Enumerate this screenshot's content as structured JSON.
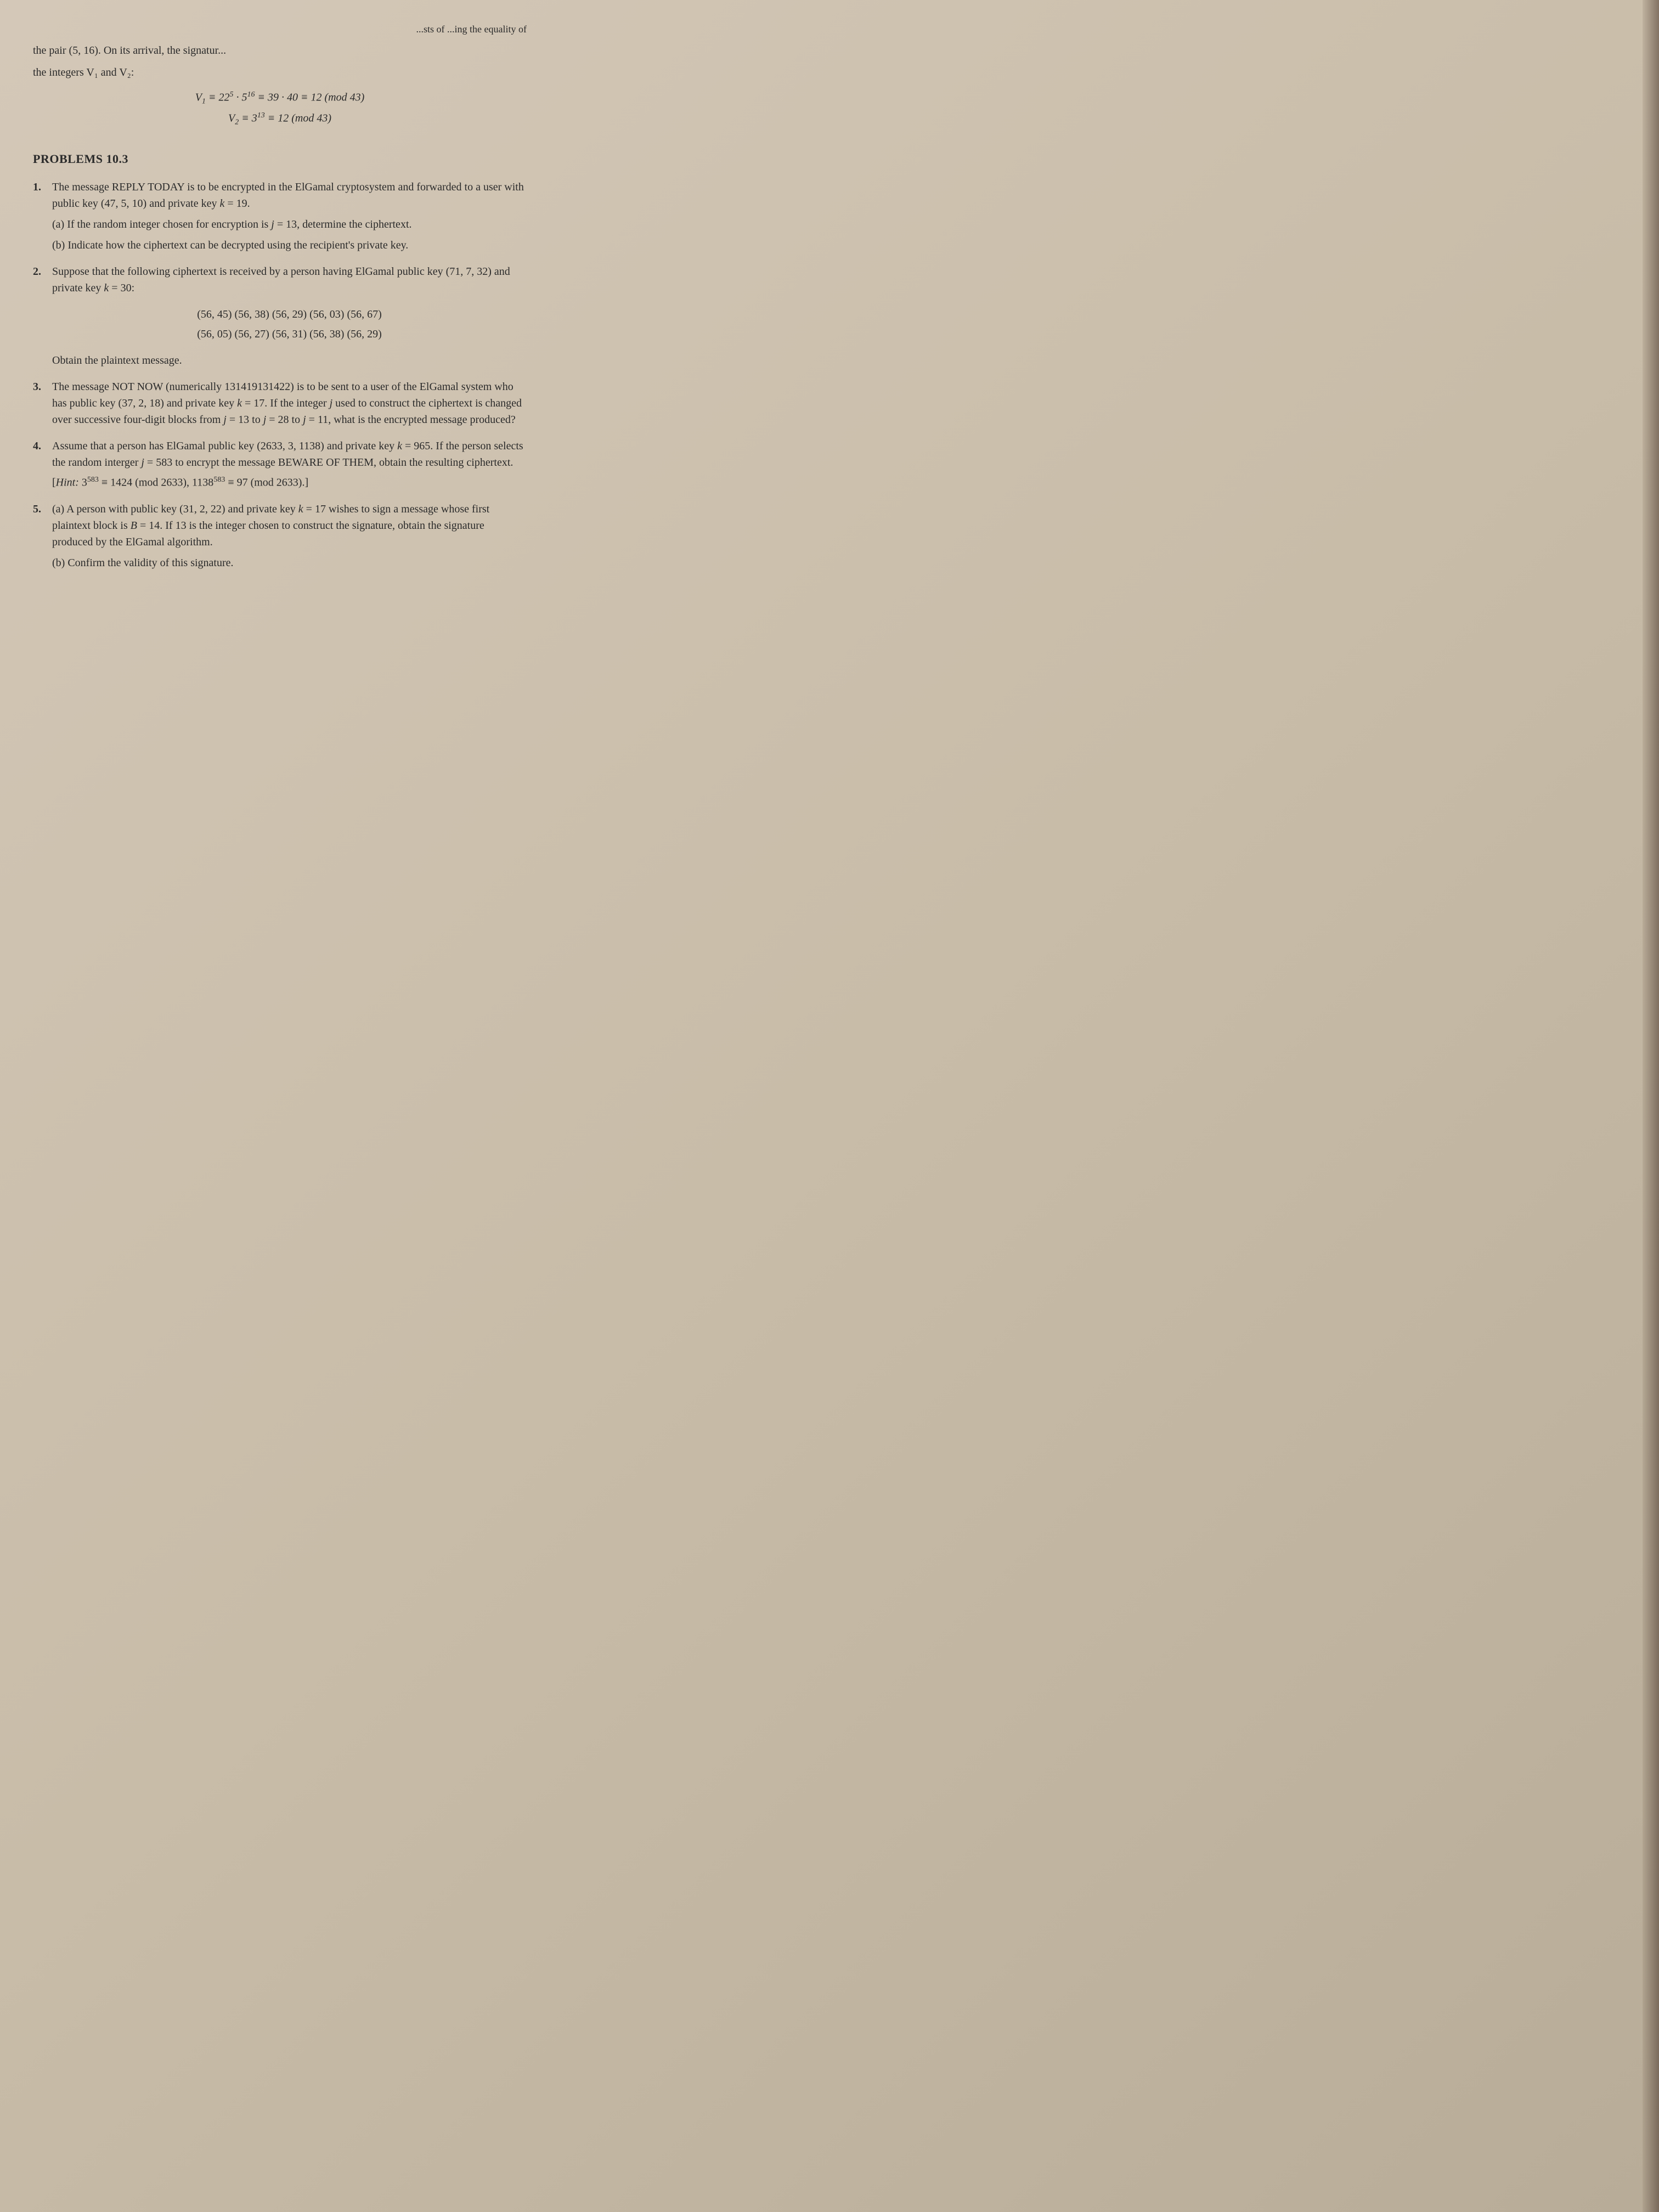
{
  "topRightFragment": "...sts of ...ing the equality of",
  "topFragment1": "the pair (5, 16). On its arrival, the signatur...",
  "topFragment2": "the integers V₁ and V₂:",
  "eq1": "V₁ ≡ 22⁵ · 5¹⁶ ≡ 39 · 40 ≡ 12 (mod 43)",
  "eq2": "V₂ ≡ 3¹³ ≡ 12 (mod 43)",
  "sectionTitle": "PROBLEMS 10.3",
  "p1": {
    "num": "1.",
    "text": "The message REPLY TODAY is to be encrypted in the ElGamal cryptosystem and forwarded to a user with public key (47, 5, 10) and private key k = 19.",
    "a": "(a) If the random integer chosen for encryption is j = 13, determine the ciphertext.",
    "b": "(b) Indicate how the ciphertext can be decrypted using the recipient's private key."
  },
  "p2": {
    "num": "2.",
    "text": "Suppose that the following ciphertext is received by a person having ElGamal public key (71, 7, 32) and private key k = 30:",
    "pairs1": "(56, 45)   (56, 38)   (56, 29)   (56, 03)   (56, 67)",
    "pairs2": "(56, 05)   (56, 27)   (56, 31)   (56, 38)   (56, 29)",
    "tail": "Obtain the plaintext message."
  },
  "p3": {
    "num": "3.",
    "text": "The message NOT NOW (numerically 131419131422) is to be sent to a user of the ElGamal system who has public key (37, 2, 18) and private key k = 17. If the integer j used to construct the ciphertext is changed over successive four-digit blocks from j = 13 to j = 28 to j = 11, what is the encrypted message produced?"
  },
  "p4": {
    "num": "4.",
    "text": "Assume that a person has ElGamal public key (2633, 3, 1138) and private key k = 965. If the person selects the random interger j = 583 to encrypt the message BEWARE OF THEM, obtain the resulting ciphertext.",
    "hint": "[Hint: 3⁵⁸³ ≡ 1424 (mod 2633), 1138⁵⁸³ ≡ 97 (mod 2633).]"
  },
  "p5": {
    "num": "5.",
    "a": "(a) A person with public key (31, 2, 22) and private key k = 17 wishes to sign a message whose first plaintext block is B = 14. If 13 is the integer chosen to construct the signature, obtain the signature produced by the ElGamal algorithm.",
    "b": "(b) Confirm the validity of this signature."
  },
  "styling": {
    "background_gradient": [
      "#d4c8b8",
      "#c8bca8",
      "#b8ac98"
    ],
    "text_color": "#2a2a2a",
    "font_family": "Times New Roman",
    "base_font_size": 20,
    "section_title_size": 22,
    "line_height": 1.5
  }
}
